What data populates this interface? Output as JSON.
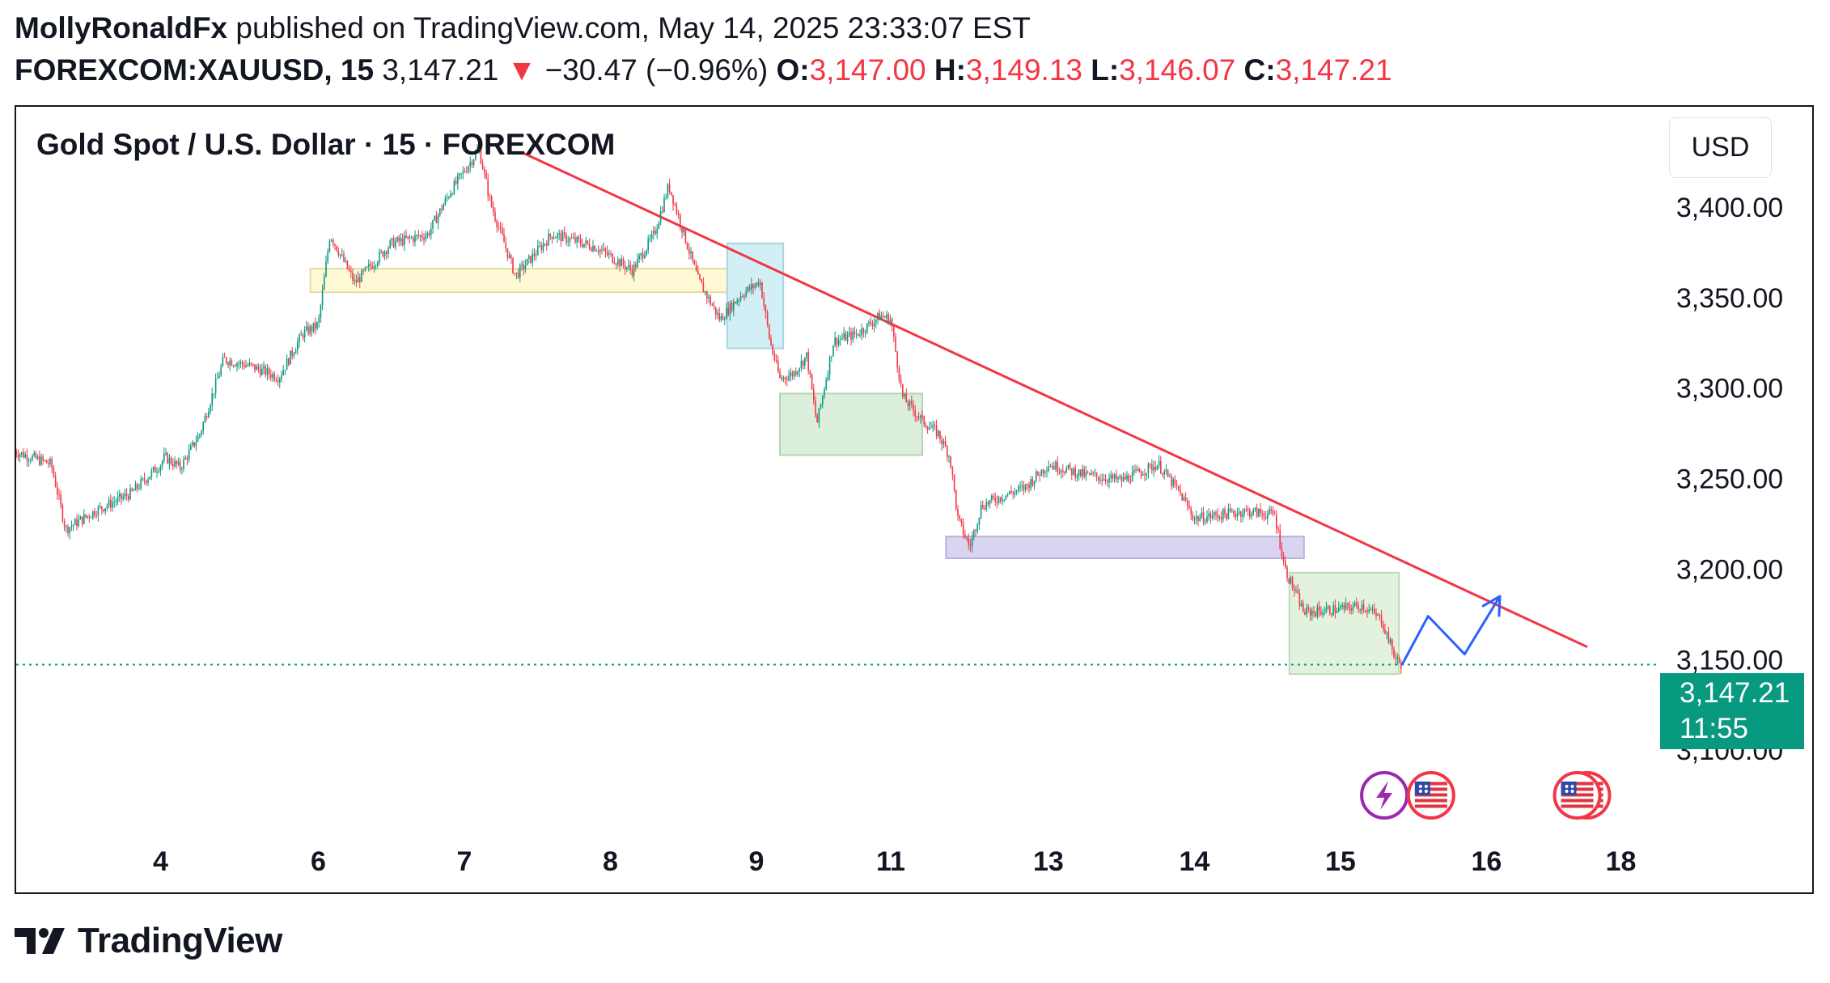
{
  "header": {
    "author": "MollyRonaldFx",
    "published_text": " published on TradingView.com, May 14, 2025 23:33:07 EST",
    "symbol": "FOREXCOM:XAUUSD, 15",
    "last_price": "3,147.21",
    "change_arrow": "▼",
    "change": "−30.47 (−0.96%)",
    "open_label": "O:",
    "open": "3,147.00",
    "high_label": "H:",
    "high": "3,149.13",
    "low_label": "L:",
    "low": "3,146.07",
    "close_label": "C:",
    "close": "3,147.21"
  },
  "chart_title": "Gold Spot / U.S. Dollar · 15 · FOREXCOM",
  "currency_button": "USD",
  "price_tag": {
    "price": "3,147.21",
    "countdown": "11:55"
  },
  "colors": {
    "up": "#089981",
    "down": "#f23645",
    "trendline": "#f23645",
    "projection": "#2962ff",
    "last_price_line": "#089981",
    "zone_yellow": "#fff9d6",
    "zone_cyan": "#d2eff5",
    "zone_green": "#dcefdc",
    "zone_purple": "#d9d4f0",
    "zone_green_last": "#e3f2df"
  },
  "icons": [
    "lightning-event-icon",
    "us-flag-event-icon",
    "us-flag-event-icon-double"
  ],
  "logo_text": "TradingView",
  "chart_data": {
    "type": "candlestick",
    "title": "Gold Spot / U.S. Dollar · 15 · FOREXCOM",
    "currency": "USD",
    "y_ticks": [
      3100,
      3150,
      3200,
      3250,
      3300,
      3350,
      3400
    ],
    "y_tick_labels": [
      "3,100.00",
      "3,150.00",
      "3,200.00",
      "3,250.00",
      "3,300.00",
      "3,350.00",
      "3,400.00"
    ],
    "ylim": [
      3054,
      3455
    ],
    "x_ticks": [
      {
        "day": 4,
        "label": "4"
      },
      {
        "day": 6,
        "label": "6"
      },
      {
        "day": 7,
        "label": "7"
      },
      {
        "day": 8,
        "label": "8"
      },
      {
        "day": 9,
        "label": "9"
      },
      {
        "day": 11,
        "label": "11"
      },
      {
        "day": 13,
        "label": "13"
      },
      {
        "day": 14,
        "label": "14"
      },
      {
        "day": 15,
        "label": "15"
      },
      {
        "day": 16,
        "label": "16"
      },
      {
        "day": 18,
        "label": "18"
      }
    ],
    "x_axis_positions": [
      {
        "day": 3.0,
        "t": 0.0
      },
      {
        "day": 4,
        "t": 1.0
      },
      {
        "day": 6,
        "t": 2.08
      },
      {
        "day": 7,
        "t": 3.08
      },
      {
        "day": 8,
        "t": 4.08
      },
      {
        "day": 9,
        "t": 5.08
      },
      {
        "day": 11,
        "t": 6.0
      },
      {
        "day": 13,
        "t": 7.08
      },
      {
        "day": 14,
        "t": 8.08
      },
      {
        "day": 15,
        "t": 9.08
      },
      {
        "day": 16,
        "t": 10.08
      },
      {
        "day": 18,
        "t": 11.0
      }
    ],
    "price_path": [
      [
        3.0,
        3265
      ],
      [
        3.25,
        3258
      ],
      [
        3.35,
        3222
      ],
      [
        3.55,
        3232
      ],
      [
        3.8,
        3242
      ],
      [
        4.05,
        3262
      ],
      [
        4.25,
        3256
      ],
      [
        4.5,
        3275
      ],
      [
        4.8,
        3316
      ],
      [
        5.15,
        3312
      ],
      [
        5.5,
        3306
      ],
      [
        5.8,
        3330
      ],
      [
        6.0,
        3335
      ],
      [
        6.08,
        3385
      ],
      [
        6.25,
        3358
      ],
      [
        6.5,
        3380
      ],
      [
        6.75,
        3385
      ],
      [
        6.9,
        3408
      ],
      [
        7.1,
        3432
      ],
      [
        7.18,
        3402
      ],
      [
        7.35,
        3362
      ],
      [
        7.6,
        3385
      ],
      [
        7.9,
        3378
      ],
      [
        8.15,
        3365
      ],
      [
        8.3,
        3385
      ],
      [
        8.4,
        3412
      ],
      [
        8.6,
        3360
      ],
      [
        8.75,
        3338
      ],
      [
        8.9,
        3352
      ],
      [
        9.05,
        3360
      ],
      [
        9.2,
        3326
      ],
      [
        9.35,
        3305
      ],
      [
        9.55,
        3308
      ],
      [
        9.75,
        3318
      ],
      [
        9.9,
        3280
      ],
      [
        10.15,
        3326
      ],
      [
        10.5,
        3330
      ],
      [
        10.85,
        3340
      ],
      [
        11.0,
        3338
      ],
      [
        11.15,
        3295
      ],
      [
        11.4,
        3282
      ],
      [
        11.6,
        3275
      ],
      [
        11.75,
        3262
      ],
      [
        11.85,
        3228
      ],
      [
        12.0,
        3212
      ],
      [
        12.15,
        3235
      ],
      [
        12.4,
        3240
      ],
      [
        12.7,
        3245
      ],
      [
        13.0,
        3258
      ],
      [
        13.25,
        3252
      ],
      [
        13.5,
        3249
      ],
      [
        13.75,
        3258
      ],
      [
        13.9,
        3242
      ],
      [
        14.0,
        3228
      ],
      [
        14.35,
        3232
      ],
      [
        14.55,
        3230
      ],
      [
        14.62,
        3200
      ],
      [
        14.75,
        3176
      ],
      [
        15.0,
        3178
      ],
      [
        15.15,
        3180
      ],
      [
        15.28,
        3172
      ],
      [
        15.38,
        3150
      ],
      [
        15.42,
        3147
      ]
    ],
    "last_price": 3147.21,
    "trendline": [
      {
        "day": 7.4,
        "price": 3430
      },
      {
        "day": 17.5,
        "price": 3157
      }
    ],
    "zones": [
      {
        "name": "zone-yellow",
        "x1": 5.9,
        "x2": 8.9,
        "y1": 3353,
        "y2": 3366,
        "color": "#fff9d6",
        "border": "#e3dca0"
      },
      {
        "name": "zone-cyan",
        "x1": 8.8,
        "x2": 9.4,
        "y1": 3322,
        "y2": 3380,
        "color": "#d2eff5",
        "border": "#a8d6e0"
      },
      {
        "name": "zone-green",
        "x1": 9.35,
        "x2": 11.4,
        "y1": 3263,
        "y2": 3297,
        "color": "#dcefdc",
        "border": "#b5d4b5"
      },
      {
        "name": "zone-purple",
        "x1": 11.7,
        "x2": 14.75,
        "y1": 3206,
        "y2": 3218,
        "color": "#d9d4f0",
        "border": "#bbb3de"
      },
      {
        "name": "zone-green-last",
        "x1": 14.65,
        "x2": 15.4,
        "y1": 3142,
        "y2": 3198,
        "color": "#e3f2df",
        "border": "#bddab5"
      }
    ],
    "projection": [
      [
        15.42,
        3147
      ],
      [
        15.6,
        3174
      ],
      [
        15.85,
        3153
      ],
      [
        16.2,
        3185
      ]
    ],
    "events": [
      {
        "icon": "lightning-event-icon",
        "day": 15.3
      },
      {
        "icon": "us-flag-event-icon",
        "day": 15.62
      },
      {
        "icon": "us-flag-event-icon-double",
        "day": 17.35
      }
    ]
  }
}
